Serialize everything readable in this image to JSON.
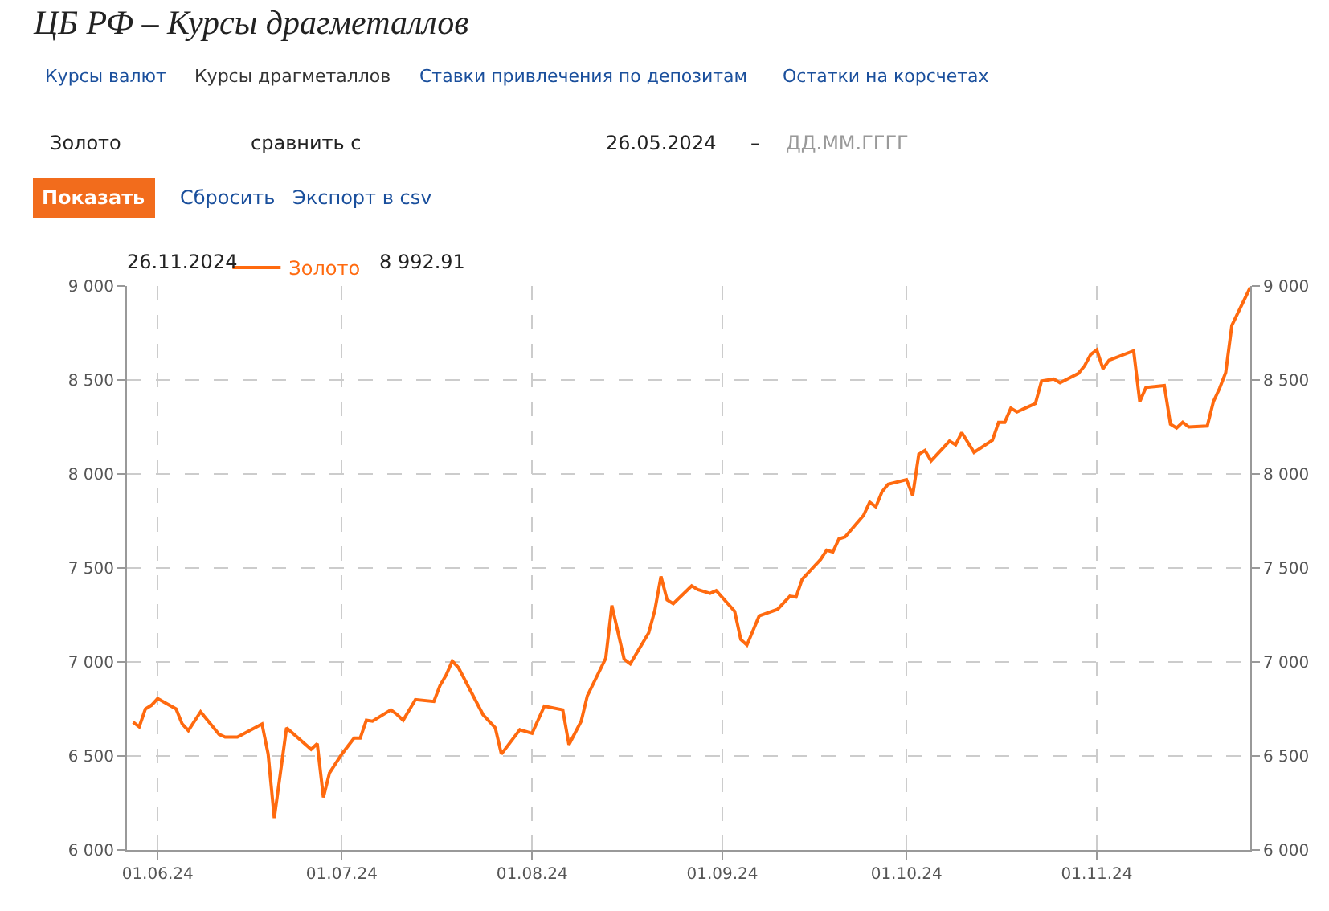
{
  "chart_data": {
    "type": "line",
    "title": "ЦБ РФ – Курсы драгметаллов",
    "annotations": [
      "Курсы валют",
      "Курсы драгметаллов",
      "Ставки привлечения по депозитам",
      "Остатки на корсчетах",
      "Золото",
      "сравнить с",
      "26.05.2024",
      "–",
      "ДД.ММ.ГГГГ",
      "Показать",
      "Сбросить",
      "Экспорт в csv",
      "26.11.2024",
      "8 992.91"
    ],
    "x": [
      "2024-05-28",
      "2024-05-29",
      "2024-05-30",
      "2024-05-31",
      "2024-06-01",
      "2024-06-04",
      "2024-06-05",
      "2024-06-06",
      "2024-06-08",
      "2024-06-11",
      "2024-06-12",
      "2024-06-14",
      "2024-06-18",
      "2024-06-19",
      "2024-06-20",
      "2024-06-22",
      "2024-06-26",
      "2024-06-27",
      "2024-06-28",
      "2024-06-29",
      "2024-07-01",
      "2024-07-03",
      "2024-07-04",
      "2024-07-05",
      "2024-07-06",
      "2024-07-09",
      "2024-07-10",
      "2024-07-11",
      "2024-07-13",
      "2024-07-16",
      "2024-07-17",
      "2024-07-18",
      "2024-07-19",
      "2024-07-20",
      "2024-07-24",
      "2024-07-26",
      "2024-07-27",
      "2024-07-30",
      "2024-08-01",
      "2024-08-03",
      "2024-08-06",
      "2024-08-07",
      "2024-08-09",
      "2024-08-10",
      "2024-08-13",
      "2024-08-14",
      "2024-08-16",
      "2024-08-17",
      "2024-08-20",
      "2024-08-21",
      "2024-08-22",
      "2024-08-23",
      "2024-08-24",
      "2024-08-27",
      "2024-08-28",
      "2024-08-30",
      "2024-08-31",
      "2024-09-03",
      "2024-09-04",
      "2024-09-05",
      "2024-09-07",
      "2024-09-10",
      "2024-09-12",
      "2024-09-13",
      "2024-09-14",
      "2024-09-17",
      "2024-09-18",
      "2024-09-19",
      "2024-09-20",
      "2024-09-21",
      "2024-09-24",
      "2024-09-25",
      "2024-09-26",
      "2024-09-27",
      "2024-09-28",
      "2024-10-01",
      "2024-10-02",
      "2024-10-03",
      "2024-10-04",
      "2024-10-05",
      "2024-10-08",
      "2024-10-09",
      "2024-10-10",
      "2024-10-12",
      "2024-10-15",
      "2024-10-16",
      "2024-10-17",
      "2024-10-18",
      "2024-10-19",
      "2024-10-22",
      "2024-10-23",
      "2024-10-25",
      "2024-10-26",
      "2024-10-29",
      "2024-10-30",
      "2024-10-31",
      "2024-11-01",
      "2024-11-02",
      "2024-11-03",
      "2024-11-07",
      "2024-11-08",
      "2024-11-09",
      "2024-11-12",
      "2024-11-13",
      "2024-11-14",
      "2024-11-15",
      "2024-11-16",
      "2024-11-19",
      "2024-11-20",
      "2024-11-21",
      "2024-11-22",
      "2024-11-23",
      "2024-11-26"
    ],
    "series": [
      {
        "name": "Золото",
        "color": "#ff6a0f",
        "values": [
          6680,
          6655,
          6750,
          6770,
          6805,
          6750,
          6670,
          6635,
          6735,
          6615,
          6600,
          6600,
          6670,
          6510,
          6170,
          6650,
          6535,
          6565,
          6280,
          6410,
          6510,
          6595,
          6595,
          6690,
          6685,
          6745,
          6720,
          6690,
          6800,
          6790,
          6875,
          6930,
          7005,
          6970,
          6720,
          6650,
          6510,
          6640,
          6620,
          6765,
          6745,
          6560,
          6685,
          6820,
          7020,
          7300,
          7015,
          6990,
          7155,
          7275,
          7455,
          7330,
          7310,
          7405,
          7385,
          7365,
          7380,
          7270,
          7120,
          7090,
          7245,
          7280,
          7350,
          7345,
          7440,
          7545,
          7595,
          7585,
          7655,
          7665,
          7780,
          7850,
          7825,
          7905,
          7945,
          7970,
          7885,
          8105,
          8125,
          8070,
          8175,
          8155,
          8220,
          8115,
          8180,
          8275,
          8275,
          8350,
          8330,
          8375,
          8495,
          8505,
          8485,
          8535,
          8575,
          8635,
          8660,
          8560,
          8605,
          8655,
          8385,
          8460,
          8470,
          8265,
          8245,
          8275,
          8250,
          8255,
          8385,
          8455,
          8540,
          8790,
          8992.91
        ]
      }
    ],
    "xlim": [
      "2024-05-27",
      "2024-11-26"
    ],
    "xticks": [
      {
        "value": "2024-06-01",
        "label": "01.06.24"
      },
      {
        "value": "2024-07-01",
        "label": "01.07.24"
      },
      {
        "value": "2024-08-01",
        "label": "01.08.24"
      },
      {
        "value": "2024-09-01",
        "label": "01.09.24"
      },
      {
        "value": "2024-10-01",
        "label": "01.10.24"
      },
      {
        "value": "2024-11-01",
        "label": "01.11.24"
      }
    ],
    "ylim": [
      6000,
      9000
    ],
    "yticks": [
      {
        "value": 6000,
        "label": "6 000"
      },
      {
        "value": 6500,
        "label": "6 500"
      },
      {
        "value": 7000,
        "label": "7 000"
      },
      {
        "value": 7500,
        "label": "7 500"
      },
      {
        "value": 8000,
        "label": "8 000"
      },
      {
        "value": 8500,
        "label": "8 500"
      },
      {
        "value": 9000,
        "label": "9 000"
      }
    ],
    "y2lim": [
      6000,
      9000
    ],
    "y2ticks": [
      {
        "value": 6000,
        "label": "6 000"
      },
      {
        "value": 6500,
        "label": "6 500"
      },
      {
        "value": 7000,
        "label": "7 000"
      },
      {
        "value": 7500,
        "label": "7 500"
      },
      {
        "value": 8000,
        "label": "8 000"
      },
      {
        "value": 8500,
        "label": "8 500"
      },
      {
        "value": 9000,
        "label": "9 000"
      }
    ],
    "grid": true,
    "legend": "top left",
    "line_style": "solid"
  }
}
